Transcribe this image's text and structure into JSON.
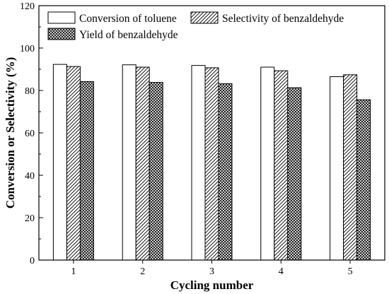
{
  "chart_data": {
    "type": "bar",
    "categories": [
      "1",
      "2",
      "3",
      "4",
      "5"
    ],
    "series": [
      {
        "name": "Conversion of toluene",
        "pattern": "blank",
        "values": [
          92.3,
          92.1,
          91.8,
          91.0,
          86.5
        ]
      },
      {
        "name": "Selectivity of benzaldehyde",
        "pattern": "diagonal-hatch",
        "values": [
          91.3,
          91.0,
          90.7,
          89.3,
          87.4
        ]
      },
      {
        "name": "Yield of benzaldehyde",
        "pattern": "crosshatch",
        "values": [
          84.2,
          83.8,
          83.2,
          81.3,
          75.6
        ]
      }
    ],
    "xlabel": "Cycling number",
    "ylabel": "Conversion or Selectivity (%)",
    "ylim": [
      0,
      120
    ],
    "yticks": [
      0,
      20,
      40,
      60,
      80,
      100,
      120
    ],
    "grid": false,
    "legend_position": "top",
    "colors": {
      "fill": "#ffffff",
      "stroke": "#000000"
    }
  }
}
